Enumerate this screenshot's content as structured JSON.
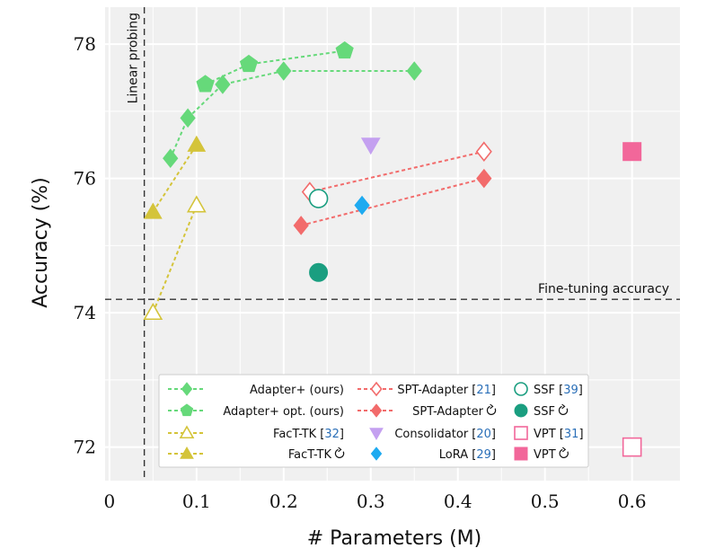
{
  "chart_data": {
    "type": "scatter",
    "title": "",
    "xlabel": "# Parameters (M)",
    "ylabel": "Accuracy (%)",
    "xlim": [
      -0.005,
      0.655
    ],
    "ylim": [
      71.5,
      78.55
    ],
    "x_ticks": [
      "0",
      "0.1",
      "0.2",
      "0.3",
      "0.4",
      "0.5",
      "0.6"
    ],
    "x_tick_values": [
      0,
      0.1,
      0.2,
      0.3,
      0.4,
      0.5,
      0.6
    ],
    "y_ticks": [
      "72",
      "74",
      "76",
      "78"
    ],
    "y_tick_values": [
      72,
      74,
      76,
      78
    ],
    "grid": true,
    "background": "#f0f0f0",
    "legend_position": "bottom-center",
    "reference_lines": [
      {
        "orientation": "vertical",
        "value": 0.04,
        "label": "Linear probing",
        "color": "#333333"
      },
      {
        "orientation": "horizontal",
        "value": 74.2,
        "label": "Fine-tuning accuracy",
        "color": "#333333"
      }
    ],
    "series": [
      {
        "name": "Adapter+ (ours)",
        "legend_ref": "",
        "marker": "diamond",
        "filled": true,
        "color": "#66d97a",
        "line": true,
        "x": [
          0.07,
          0.09,
          0.13,
          0.2,
          0.35
        ],
        "y": [
          76.3,
          76.9,
          77.4,
          77.6,
          77.6
        ]
      },
      {
        "name": "Adapter+ opt. (ours)",
        "legend_ref": "",
        "marker": "pentagon",
        "filled": true,
        "color": "#66d97a",
        "line": true,
        "x": [
          0.11,
          0.16,
          0.27
        ],
        "y": [
          77.4,
          77.7,
          77.9
        ]
      },
      {
        "name": "FacT-TK",
        "legend_ref": "32",
        "marker": "triangle",
        "filled": false,
        "color": "#d4c43a",
        "line": true,
        "x": [
          0.05,
          0.1
        ],
        "y": [
          74.0,
          75.6
        ]
      },
      {
        "name": "FacT-TK",
        "legend_ref": "",
        "marker": "triangle",
        "filled": true,
        "color": "#d4c43a",
        "line": true,
        "x": [
          0.05,
          0.1
        ],
        "y": [
          75.5,
          76.5
        ]
      },
      {
        "name": "SPT-Adapter",
        "legend_ref": "21",
        "marker": "diamond",
        "filled": false,
        "color": "#f26b6b",
        "line": true,
        "x": [
          0.23,
          0.43
        ],
        "y": [
          75.8,
          76.4
        ]
      },
      {
        "name": "SPT-Adapter",
        "legend_ref": "",
        "marker": "diamond",
        "filled": true,
        "color": "#f26b6b",
        "line": true,
        "x": [
          0.22,
          0.43
        ],
        "y": [
          75.3,
          76.0
        ]
      },
      {
        "name": "Consolidator",
        "legend_ref": "20",
        "marker": "triangle-down",
        "filled": true,
        "color": "#c4a0f0",
        "line": false,
        "x": [
          0.3
        ],
        "y": [
          76.5
        ]
      },
      {
        "name": "LoRA",
        "legend_ref": "29",
        "marker": "diamond",
        "filled": true,
        "color": "#1eaaf0",
        "line": false,
        "x": [
          0.29
        ],
        "y": [
          75.6
        ]
      },
      {
        "name": "SSF",
        "legend_ref": "39",
        "marker": "circle",
        "filled": false,
        "color": "#1a9e80",
        "line": false,
        "x": [
          0.24
        ],
        "y": [
          75.7
        ]
      },
      {
        "name": "SSF",
        "legend_ref": "",
        "marker": "circle",
        "filled": true,
        "color": "#1a9e80",
        "line": false,
        "x": [
          0.24
        ],
        "y": [
          74.6
        ]
      },
      {
        "name": "VPT",
        "legend_ref": "31",
        "marker": "square",
        "filled": false,
        "color": "#f2679a",
        "line": false,
        "x": [
          0.6
        ],
        "y": [
          72.0
        ]
      },
      {
        "name": "VPT",
        "legend_ref": "",
        "marker": "square",
        "filled": true,
        "color": "#f2679a",
        "line": false,
        "x": [
          0.6
        ],
        "y": [
          76.4
        ]
      }
    ]
  }
}
